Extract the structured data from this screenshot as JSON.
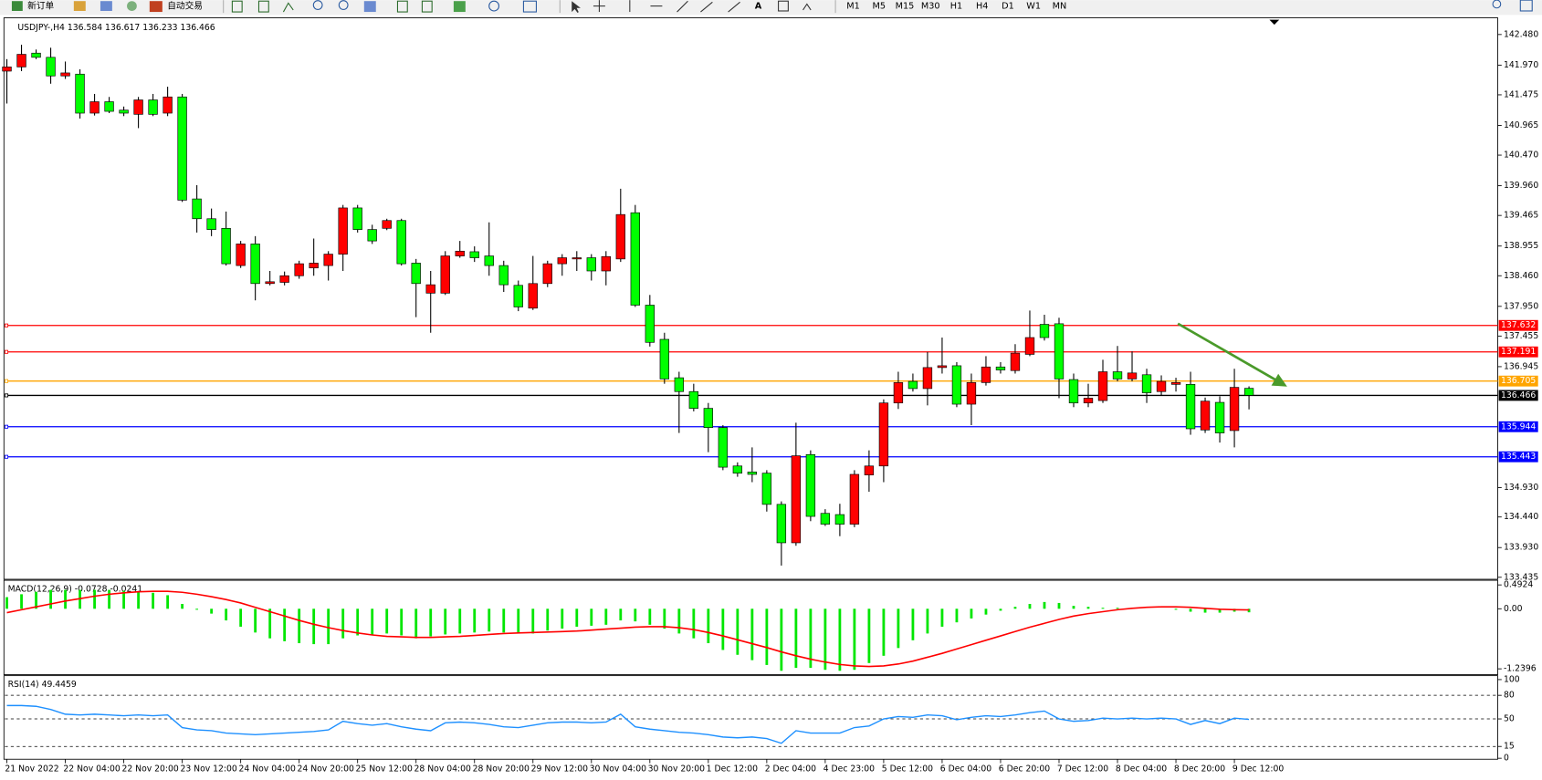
{
  "toolbar": {
    "new_order": "新订单",
    "auto_trading": "自动交易",
    "timeframes": [
      "M1",
      "M5",
      "M15",
      "M30",
      "H1",
      "H4",
      "D1",
      "W1",
      "MN"
    ]
  },
  "chart_data": [
    {
      "type": "candlestick",
      "title": "USDJPY-,H4 136.584 136.617 136.233 136.466",
      "categories": [
        "21 Nov 2022",
        null,
        null,
        null,
        "22 Nov 04:00",
        null,
        null,
        null,
        "22 Nov 20:00",
        null,
        null,
        null,
        "23 Nov 12:00",
        null,
        null,
        null,
        "24 Nov 04:00",
        null,
        null,
        null,
        "24 Nov 20:00",
        null,
        null,
        null,
        "25 Nov 12:00",
        null,
        null,
        null,
        "28 Nov 04:00",
        null,
        null,
        null,
        "28 Nov 20:00",
        null,
        null,
        null,
        "29 Nov 12:00",
        null,
        null,
        null,
        "30 Nov 04:00",
        null,
        null,
        null,
        "30 Nov 20:00",
        null,
        null,
        null,
        "1 Dec 12:00",
        null,
        null,
        null,
        "2 Dec 04:00",
        null,
        null,
        null,
        "4 Dec 23:00",
        null,
        null,
        null,
        "5 Dec 12:00",
        null,
        null,
        null,
        "6 Dec 04:00",
        null,
        null,
        null,
        "6 Dec 20:00",
        null,
        null,
        null,
        "7 Dec 12:00",
        null,
        null,
        null,
        "8 Dec 04:00",
        null,
        null,
        null,
        "8 Dec 20:00",
        null,
        null,
        null,
        "9 Dec 12:00",
        null
      ],
      "open": [
        141.87,
        141.94,
        142.17,
        142.1,
        141.79,
        141.82,
        141.17,
        141.36,
        141.22,
        141.15,
        141.39,
        141.17,
        141.44,
        139.74,
        139.41,
        139.25,
        138.63,
        138.99,
        138.33,
        138.35,
        138.46,
        138.59,
        138.63,
        138.82,
        139.59,
        139.23,
        139.25,
        139.38,
        138.67,
        138.17,
        138.17,
        138.79,
        138.86,
        138.79,
        138.63,
        138.3,
        137.92,
        138.33,
        138.66,
        138.74,
        138.76,
        138.54,
        138.74,
        139.51,
        137.97,
        137.4,
        136.76,
        136.53,
        136.25,
        135.93,
        135.29,
        135.19,
        135.17,
        134.65,
        134.01,
        135.48,
        134.5,
        134.48,
        134.32,
        135.14,
        135.29,
        136.34,
        136.7,
        136.58,
        136.93,
        136.96,
        136.32,
        136.68,
        136.94,
        136.88,
        137.15,
        137.65,
        137.66,
        136.73,
        136.34,
        136.38,
        136.86,
        136.74,
        136.81,
        136.53,
        136.65,
        136.65,
        135.89,
        136.35,
        135.88,
        136.584
      ],
      "high": [
        142.07,
        142.31,
        142.23,
        142.26,
        142.03,
        141.9,
        141.49,
        141.44,
        141.28,
        141.44,
        141.49,
        141.61,
        141.49,
        139.97,
        139.58,
        139.53,
        139.04,
        139.12,
        138.54,
        138.53,
        138.71,
        139.08,
        138.87,
        139.64,
        139.64,
        139.31,
        139.41,
        139.41,
        138.74,
        138.54,
        138.87,
        139.04,
        138.95,
        139.35,
        138.71,
        138.38,
        138.79,
        138.71,
        138.82,
        138.87,
        138.82,
        138.87,
        139.91,
        139.64,
        138.14,
        137.51,
        136.86,
        136.66,
        136.34,
        135.97,
        135.35,
        135.6,
        135.22,
        134.7,
        136.01,
        135.55,
        134.57,
        134.66,
        135.22,
        135.55,
        136.4,
        136.86,
        136.83,
        137.19,
        137.43,
        137.02,
        136.83,
        137.12,
        137.02,
        137.32,
        137.88,
        137.81,
        137.76,
        136.83,
        136.66,
        137.06,
        137.29,
        137.2,
        136.91,
        136.8,
        136.76,
        136.86,
        136.43,
        136.45,
        136.91,
        136.617
      ],
      "low": [
        141.33,
        141.87,
        142.07,
        141.66,
        141.74,
        141.08,
        141.13,
        141.17,
        141.12,
        140.92,
        141.12,
        141.12,
        139.69,
        139.18,
        139.12,
        138.63,
        138.59,
        138.05,
        138.3,
        138.3,
        138.41,
        138.46,
        138.38,
        138.54,
        139.18,
        138.99,
        139.22,
        138.63,
        137.77,
        137.51,
        138.14,
        138.76,
        138.69,
        138.46,
        138.19,
        137.87,
        137.89,
        138.27,
        138.46,
        138.54,
        138.38,
        138.3,
        138.69,
        137.94,
        137.28,
        136.66,
        135.84,
        136.2,
        135.52,
        135.22,
        135.11,
        135.02,
        134.53,
        133.63,
        133.96,
        134.37,
        134.29,
        134.12,
        134.27,
        134.86,
        135.02,
        136.24,
        136.53,
        136.3,
        136.83,
        136.27,
        135.97,
        136.63,
        136.83,
        136.83,
        137.12,
        137.38,
        136.42,
        136.27,
        136.27,
        136.34,
        136.7,
        136.7,
        136.34,
        136.47,
        136.53,
        135.81,
        135.84,
        135.68,
        135.6,
        136.233
      ],
      "close": [
        141.94,
        142.15,
        142.1,
        141.79,
        141.84,
        141.17,
        141.36,
        141.2,
        141.17,
        141.39,
        141.15,
        141.44,
        139.72,
        139.41,
        139.23,
        138.66,
        138.99,
        138.33,
        138.36,
        138.46,
        138.66,
        138.67,
        138.82,
        139.59,
        139.23,
        139.04,
        139.38,
        138.66,
        138.33,
        138.31,
        138.79,
        138.87,
        138.76,
        138.63,
        138.31,
        137.94,
        138.33,
        138.66,
        138.76,
        138.76,
        138.54,
        138.78,
        139.48,
        137.97,
        137.35,
        136.74,
        136.53,
        136.25,
        135.93,
        135.27,
        135.17,
        135.15,
        134.65,
        134.01,
        135.46,
        134.45,
        134.32,
        134.32,
        135.15,
        135.29,
        136.34,
        136.68,
        136.58,
        136.93,
        136.96,
        136.32,
        136.68,
        136.94,
        136.89,
        137.17,
        137.43,
        137.43,
        136.74,
        136.34,
        136.42,
        136.86,
        136.74,
        136.84,
        136.51,
        136.7,
        136.68,
        135.91,
        136.37,
        135.84,
        136.6,
        136.466
      ],
      "up_color": "#ff0000",
      "down_color": "#00ff00",
      "ylim": [
        133.418,
        142.742
      ],
      "yticks": [
        {
          "value": 142.48,
          "label": "142.480"
        },
        {
          "value": 141.97,
          "label": "141.970"
        },
        141.475,
        140.965,
        {
          "value": 140.47,
          "label": "140.470"
        },
        {
          "value": 139.96,
          "label": "139.960"
        },
        139.465,
        138.955,
        {
          "value": 138.46,
          "label": "138.460"
        },
        {
          "value": 137.95,
          "label": "137.950"
        },
        137.455,
        136.945,
        {
          "value": 134.93,
          "label": "134.930"
        },
        {
          "value": 134.44,
          "label": "134.440"
        },
        {
          "value": 133.93,
          "label": "133.930"
        },
        133.435
      ],
      "levels": [
        {
          "value": 137.632,
          "color": "#ff0000"
        },
        {
          "value": 137.191,
          "color": "#ff0000"
        },
        {
          "value": 136.705,
          "color": "#ffa500"
        },
        {
          "value": 136.466,
          "color": "#000000"
        },
        {
          "value": 135.944,
          "color": "#0000ff"
        },
        {
          "value": 135.443,
          "color": "#0000ff"
        }
      ]
    },
    {
      "type": "macd",
      "title": "MACD(12,26,9) -0.0728 -0.0241",
      "series": [
        {
          "color": "#00e600",
          "values": [
            0.24,
            0.3,
            0.35,
            0.39,
            0.39,
            0.39,
            0.39,
            0.39,
            0.37,
            0.35,
            0.33,
            0.28,
            0.1,
            -0.02,
            -0.1,
            -0.24,
            -0.37,
            -0.49,
            -0.61,
            -0.67,
            -0.71,
            -0.73,
            -0.73,
            -0.61,
            -0.55,
            -0.55,
            -0.51,
            -0.55,
            -0.61,
            -0.57,
            -0.53,
            -0.51,
            -0.49,
            -0.47,
            -0.49,
            -0.51,
            -0.51,
            -0.45,
            -0.41,
            -0.37,
            -0.35,
            -0.33,
            -0.24,
            -0.26,
            -0.33,
            -0.41,
            -0.51,
            -0.61,
            -0.71,
            -0.85,
            -0.95,
            -1.06,
            -1.16,
            -1.28,
            -1.22,
            -1.22,
            -1.26,
            -1.28,
            -1.26,
            -1.12,
            -0.97,
            -0.81,
            -0.65,
            -0.51,
            -0.37,
            -0.28,
            -0.2,
            -0.12,
            -0.04,
            0.04,
            0.1,
            0.14,
            0.12,
            0.06,
            0.04,
            0.02,
            0.02,
            0.02,
            0,
            0,
            -0.02,
            -0.06,
            -0.08,
            -0.08,
            -0.06,
            -0.0728
          ]
        },
        {
          "color": "#ff0000",
          "values": [
            -0.08,
            -0.02,
            0.04,
            0.1,
            0.16,
            0.21,
            0.26,
            0.3,
            0.33,
            0.35,
            0.36,
            0.36,
            0.34,
            0.3,
            0.25,
            0.19,
            0.12,
            0.03,
            -0.06,
            -0.15,
            -0.24,
            -0.32,
            -0.39,
            -0.45,
            -0.5,
            -0.54,
            -0.57,
            -0.58,
            -0.59,
            -0.59,
            -0.58,
            -0.57,
            -0.55,
            -0.53,
            -0.51,
            -0.5,
            -0.49,
            -0.48,
            -0.47,
            -0.46,
            -0.44,
            -0.42,
            -0.4,
            -0.38,
            -0.37,
            -0.37,
            -0.39,
            -0.43,
            -0.49,
            -0.56,
            -0.64,
            -0.72,
            -0.8,
            -0.89,
            -0.97,
            -1.04,
            -1.1,
            -1.15,
            -1.18,
            -1.19,
            -1.18,
            -1.14,
            -1.08,
            -1.0,
            -0.92,
            -0.83,
            -0.74,
            -0.65,
            -0.56,
            -0.47,
            -0.38,
            -0.3,
            -0.22,
            -0.15,
            -0.1,
            -0.06,
            -0.02,
            0.01,
            0.03,
            0.04,
            0.04,
            0.03,
            0.01,
            -0.01,
            -0.02,
            -0.0241
          ]
        }
      ],
      "ylim": [
        -1.36,
        0.568
      ],
      "yticks": [
        0.4924,
        {
          "value": 0,
          "label": "0.00"
        },
        -1.2396
      ]
    },
    {
      "type": "rsi",
      "title": "RSI(14) 49.4459",
      "color": "#1e90ff",
      "values": [
        67,
        67,
        66,
        62,
        56,
        55,
        56,
        55,
        54,
        55,
        54,
        55,
        39,
        36,
        35,
        32,
        31,
        30,
        31,
        32,
        33,
        34,
        36,
        47,
        44,
        42,
        44,
        40,
        37,
        35,
        45,
        46,
        45,
        43,
        40,
        39,
        42,
        45,
        46,
        46,
        45,
        46,
        56,
        40,
        37,
        35,
        33,
        32,
        30,
        27,
        26,
        27,
        25,
        19,
        35,
        32,
        32,
        32,
        39,
        41,
        50,
        53,
        52,
        55,
        54,
        49,
        52,
        54,
        53,
        55,
        58,
        60,
        50,
        47,
        48,
        51,
        50,
        51,
        50,
        51,
        50,
        43,
        48,
        44,
        51,
        49.4459
      ],
      "ylim": [
        -1.25,
        103.75
      ],
      "yticks": [
        100,
        80,
        50,
        15,
        0
      ],
      "levels": [
        80,
        50,
        15
      ]
    }
  ]
}
